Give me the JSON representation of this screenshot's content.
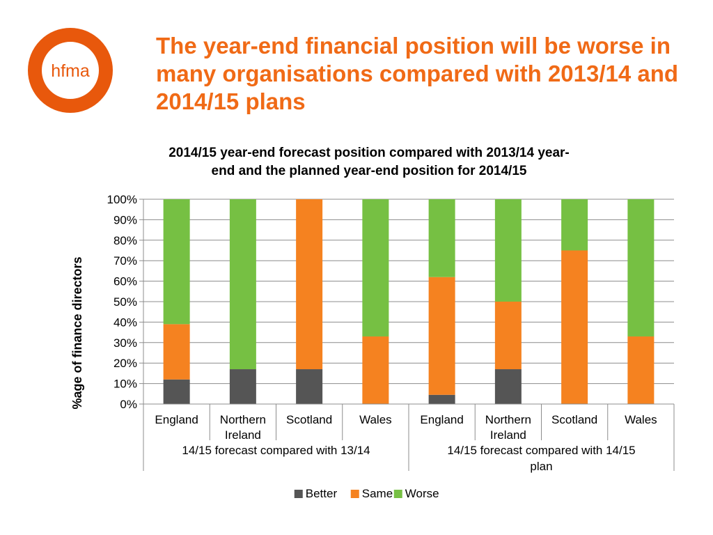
{
  "logo": {
    "text": "hfma",
    "color": "#e8580c"
  },
  "slide_title": "The year-end financial position will be worse in many organisations compared with 2013/14 and 2014/15 plans",
  "chart_data": {
    "type": "bar",
    "stacked": true,
    "percent_stacked": true,
    "title_lines": [
      "2014/15 year-end forecast position compared with 2013/14 year-",
      "end and the planned year-end position for 2014/15"
    ],
    "ylabel": "%age of finance directors",
    "ylim": [
      0,
      100
    ],
    "yticks": [
      "0%",
      "10%",
      "20%",
      "30%",
      "40%",
      "50%",
      "60%",
      "70%",
      "80%",
      "90%",
      "100%"
    ],
    "categories": [
      [
        "England"
      ],
      [
        "Northern",
        "Ireland"
      ],
      [
        "Scotland"
      ],
      [
        "Wales"
      ],
      [
        "England"
      ],
      [
        "Northern",
        "Ireland"
      ],
      [
        "Scotland"
      ],
      [
        "Wales"
      ]
    ],
    "groups": [
      {
        "label_lines": [
          "14/15 forecast compared with 13/14"
        ],
        "count": 4
      },
      {
        "label_lines": [
          "14/15 forecast compared with 14/15",
          "plan"
        ],
        "count": 4
      }
    ],
    "series": [
      {
        "name": "Better",
        "color": "#555555",
        "values": [
          12,
          17,
          17,
          0,
          4.5,
          17,
          0,
          0
        ]
      },
      {
        "name": "Same",
        "color": "#f58220",
        "values": [
          27,
          0,
          83,
          33,
          57.5,
          33,
          75,
          33
        ]
      },
      {
        "name": "Worse",
        "color": "#76c043",
        "values": [
          61,
          83,
          0,
          67,
          38,
          50,
          25,
          67
        ]
      }
    ],
    "grid": true,
    "legend_position": "bottom"
  }
}
